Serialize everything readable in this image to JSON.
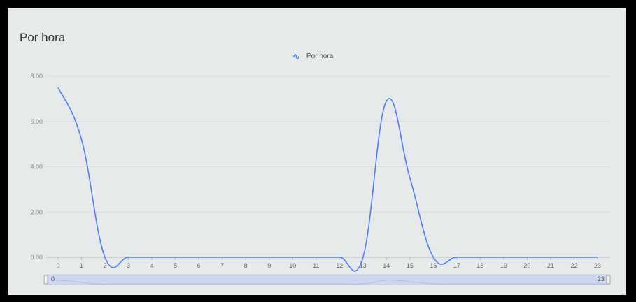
{
  "chart_data": {
    "type": "line",
    "title": "Por hora",
    "legend": [
      "Por hora"
    ],
    "series": [
      {
        "name": "Por hora",
        "x": [
          0,
          1,
          2,
          3,
          4,
          5,
          6,
          7,
          8,
          9,
          10,
          11,
          12,
          13,
          14,
          15,
          16,
          17,
          18,
          19,
          20,
          21,
          22,
          23
        ],
        "values": [
          7.5,
          5.2,
          0,
          0,
          0,
          0,
          0,
          0,
          0,
          0,
          0,
          0,
          0,
          0,
          6.9,
          3.5,
          0,
          0,
          0,
          0,
          0,
          0,
          0,
          0
        ]
      }
    ],
    "y_ticks": [
      "0.00",
      "2.00",
      "4.00",
      "6.00",
      "8.00"
    ],
    "x_ticks": [
      "0",
      "1",
      "2",
      "3",
      "4",
      "5",
      "6",
      "7",
      "8",
      "9",
      "10",
      "11",
      "12",
      "13",
      "14",
      "15",
      "16",
      "17",
      "18",
      "19",
      "20",
      "21",
      "22",
      "23"
    ],
    "ylim": [
      0,
      8
    ],
    "xlim": [
      0,
      23
    ],
    "grid": true,
    "legend_position": "top-center",
    "zoom": {
      "start_label": "0",
      "end_label": "23"
    },
    "colors": {
      "line": "#4f7ff0",
      "grid": "#e0d8dc",
      "zoom_fill": "#cdd6ee"
    }
  }
}
